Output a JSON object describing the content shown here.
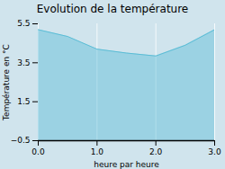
{
  "chart_data": {
    "type": "area",
    "title": "Evolution de la température",
    "x": [
      0,
      0.5,
      1.0,
      1.5,
      2.0,
      2.5,
      3.0
    ],
    "values": [
      5.2,
      4.85,
      4.2,
      4.0,
      3.85,
      4.4,
      5.2
    ],
    "color": "#5bbdd6",
    "xlabel": "heure par heure",
    "ylabel": "Température en °C",
    "xlim": [
      0,
      3
    ],
    "ylim": [
      -0.5,
      5.5
    ],
    "xticks": [
      0,
      1,
      2,
      3
    ],
    "yticks": [
      -0.5,
      1.5,
      3.5,
      5.5
    ],
    "grid": "x"
  }
}
